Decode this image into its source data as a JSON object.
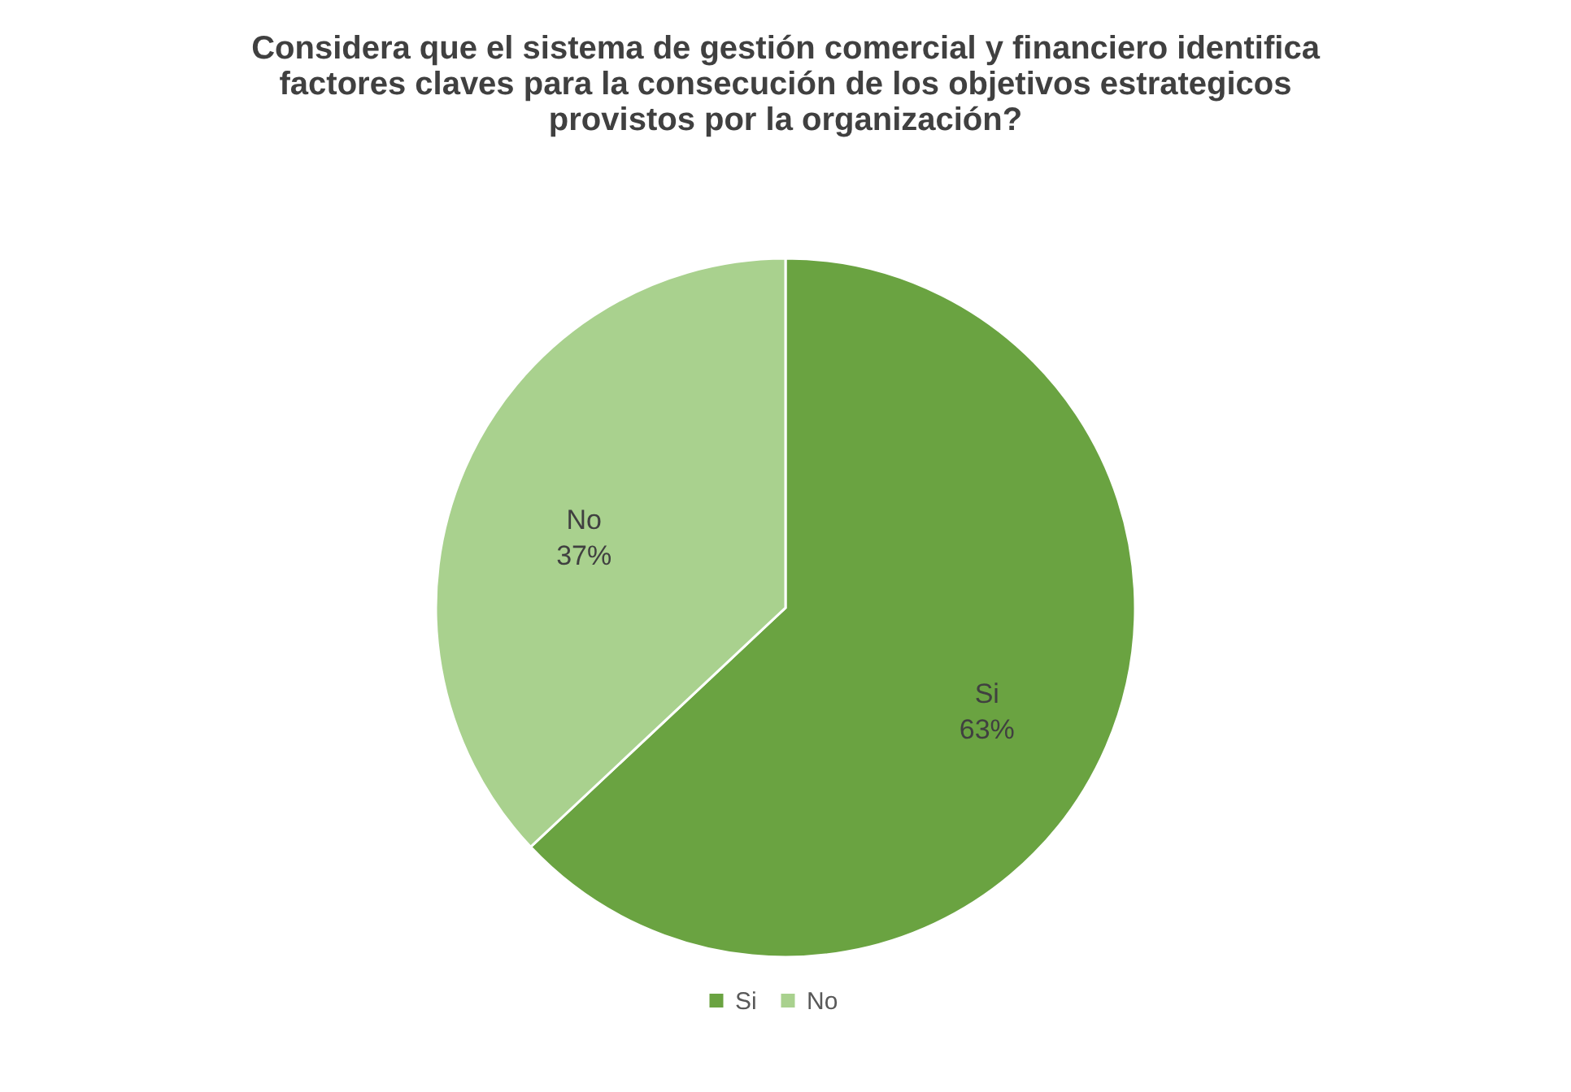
{
  "chart_data": {
    "type": "pie",
    "title": "Considera que el sistema de gestión comercial y financiero identifica factores claves para la consecución de los objetivos estrategicos provistos por la organización?",
    "categories": [
      "Si",
      "No"
    ],
    "values": [
      63,
      37
    ],
    "value_labels": [
      "63%",
      "37%"
    ],
    "colors": [
      "#6aa341",
      "#a9d18e"
    ],
    "legend": "bottom"
  }
}
